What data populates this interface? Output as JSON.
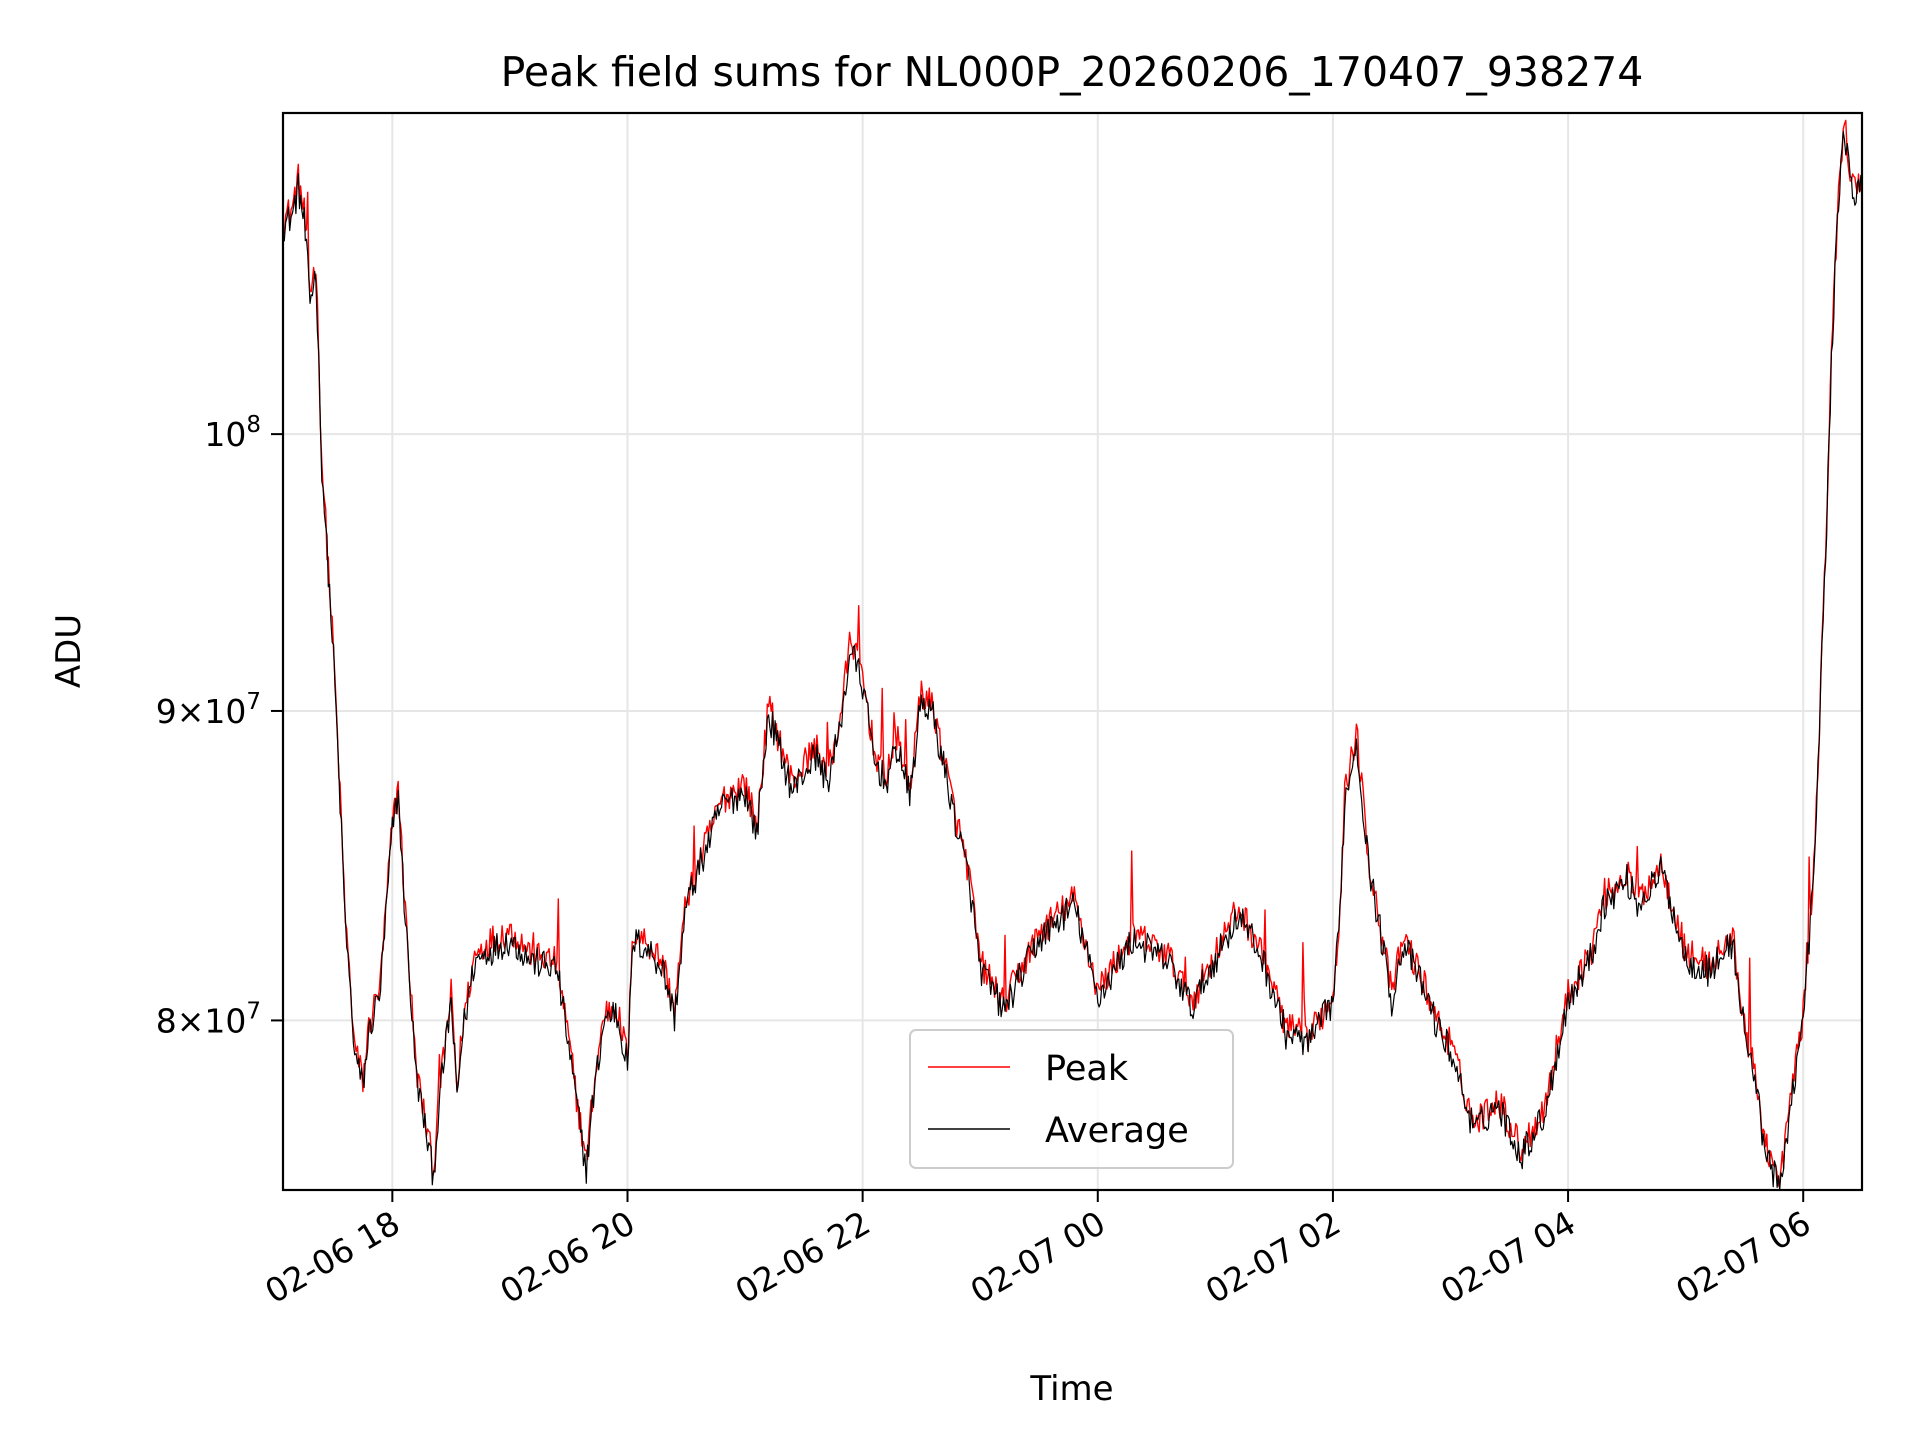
{
  "chart_data": {
    "type": "line",
    "title": "Peak field sums for NL000P_20260206_170407_938274",
    "xlabel": "Time",
    "ylabel": "ADU",
    "x_ticks": [
      "02-06 18",
      "02-06 20",
      "02-06 22",
      "02-07 00",
      "02-07 02",
      "02-07 04",
      "02-07 06"
    ],
    "x_tick_hours": [
      18,
      20,
      22,
      24,
      26,
      28,
      30
    ],
    "xlim_hours": [
      17.07,
      30.5
    ],
    "y_scale": "log",
    "ylim": [
      75000000,
      113000000
    ],
    "y_ticks": [
      {
        "value": 80000000,
        "mantissa": "8",
        "exp": "7"
      },
      {
        "value": 90000000,
        "mantissa": "9",
        "exp": "7"
      },
      {
        "value": 100000000,
        "mantissa": "10",
        "exp": "8"
      }
    ],
    "grid": true,
    "legend": {
      "position": "lower center",
      "entries": [
        "Peak",
        "Average"
      ]
    },
    "series": [
      {
        "name": "Peak",
        "color": "#ff0000",
        "x": [
          17.07,
          17.15,
          17.2,
          17.25,
          17.3,
          17.35,
          17.4,
          17.5,
          17.6,
          17.68,
          17.75,
          17.8,
          17.9,
          18.0,
          18.05,
          18.1,
          18.2,
          18.3,
          18.35,
          18.4,
          18.5,
          18.55,
          18.6,
          18.7,
          18.8,
          19.0,
          19.2,
          19.4,
          19.5,
          19.6,
          19.65,
          19.7,
          19.8,
          19.9,
          20.0,
          20.05,
          20.2,
          20.3,
          20.4,
          20.5,
          20.8,
          21.0,
          21.1,
          21.2,
          21.4,
          21.6,
          21.7,
          21.8,
          21.9,
          22.0,
          22.1,
          22.2,
          22.3,
          22.4,
          22.5,
          22.6,
          22.8,
          22.9,
          23.0,
          23.2,
          23.5,
          23.8,
          24.0,
          24.3,
          24.6,
          24.8,
          25.0,
          25.2,
          25.4,
          25.6,
          25.8,
          26.0,
          26.05,
          26.1,
          26.2,
          26.3,
          26.5,
          26.6,
          26.8,
          26.9,
          27.0,
          27.2,
          27.4,
          27.6,
          27.8,
          28.0,
          28.2,
          28.3,
          28.5,
          28.6,
          28.8,
          29.0,
          29.2,
          29.4,
          29.5,
          29.6,
          29.65,
          29.7,
          29.8,
          29.9,
          30.0,
          30.05,
          30.1,
          30.15,
          30.2,
          30.25,
          30.3,
          30.35,
          30.4,
          30.45,
          30.5
        ],
        "y": [
          108500000,
          109000000,
          110200000,
          108800000,
          105600000,
          106800000,
          99000000,
          92000000,
          83200000,
          79200000,
          78200000,
          79800000,
          81200000,
          86200000,
          87500000,
          84000000,
          78600000,
          76600000,
          75600000,
          77800000,
          80800000,
          77900000,
          79900000,
          82000000,
          82400000,
          82800000,
          82000000,
          81800000,
          79400000,
          76900000,
          75800000,
          77600000,
          80200000,
          80500000,
          78900000,
          82800000,
          82300000,
          81800000,
          80300000,
          83800000,
          87000000,
          87600000,
          86100000,
          90200000,
          87600000,
          88800000,
          87900000,
          89500000,
          92600000,
          91200000,
          88600000,
          87900000,
          89100000,
          87400000,
          90700000,
          90100000,
          86300000,
          84700000,
          81800000,
          80500000,
          82700000,
          83800000,
          80900000,
          82700000,
          82000000,
          80600000,
          82100000,
          83500000,
          82100000,
          79800000,
          79500000,
          80800000,
          82900000,
          87200000,
          89300000,
          85200000,
          80800000,
          82600000,
          80900000,
          79900000,
          79300000,
          76900000,
          77700000,
          76200000,
          77400000,
          80800000,
          82200000,
          83800000,
          84600000,
          83800000,
          84900000,
          82100000,
          81700000,
          82600000,
          79900000,
          78200000,
          76900000,
          76200000,
          75100000,
          77900000,
          80200000,
          82700000,
          85400000,
          91000000,
          97000000,
          104200000,
          109800000,
          112800000,
          110400000,
          109600000,
          110400000
        ]
      },
      {
        "name": "Average",
        "color": "#000000",
        "x": [
          17.07,
          17.15,
          17.2,
          17.25,
          17.3,
          17.35,
          17.4,
          17.5,
          17.6,
          17.68,
          17.75,
          17.8,
          17.9,
          18.0,
          18.05,
          18.1,
          18.2,
          18.3,
          18.35,
          18.4,
          18.5,
          18.55,
          18.6,
          18.7,
          18.8,
          19.0,
          19.2,
          19.4,
          19.5,
          19.6,
          19.65,
          19.7,
          19.8,
          19.9,
          20.0,
          20.05,
          20.2,
          20.3,
          20.4,
          20.5,
          20.8,
          21.0,
          21.1,
          21.2,
          21.4,
          21.6,
          21.7,
          21.8,
          21.9,
          22.0,
          22.1,
          22.2,
          22.3,
          22.4,
          22.5,
          22.6,
          22.8,
          22.9,
          23.0,
          23.2,
          23.5,
          23.8,
          24.0,
          24.3,
          24.6,
          24.8,
          25.0,
          25.2,
          25.4,
          25.6,
          25.8,
          26.0,
          26.05,
          26.1,
          26.2,
          26.3,
          26.5,
          26.6,
          26.8,
          26.9,
          27.0,
          27.2,
          27.4,
          27.6,
          27.8,
          28.0,
          28.2,
          28.3,
          28.5,
          28.6,
          28.8,
          29.0,
          29.2,
          29.4,
          29.5,
          29.6,
          29.65,
          29.7,
          29.8,
          29.9,
          30.0,
          30.05,
          30.1,
          30.15,
          30.2,
          30.25,
          30.3,
          30.35,
          30.4,
          30.45,
          30.5
        ],
        "y": [
          108200000,
          108700000,
          109800000,
          108400000,
          105200000,
          106400000,
          98800000,
          91800000,
          83000000,
          79000000,
          78000000,
          79600000,
          81000000,
          86000000,
          87200000,
          83800000,
          78400000,
          76400000,
          75400000,
          77600000,
          80600000,
          77700000,
          79700000,
          81800000,
          82100000,
          82500000,
          81800000,
          81600000,
          79200000,
          76700000,
          75600000,
          77400000,
          80000000,
          80300000,
          78700000,
          82500000,
          82100000,
          81600000,
          80100000,
          83600000,
          86800000,
          87300000,
          85900000,
          89900000,
          87300000,
          88500000,
          87600000,
          89200000,
          92200000,
          90900000,
          88300000,
          87600000,
          88800000,
          87100000,
          90400000,
          89800000,
          86100000,
          84500000,
          81600000,
          80300000,
          82500000,
          83600000,
          80700000,
          82500000,
          81800000,
          80400000,
          81900000,
          83300000,
          81900000,
          79600000,
          79300000,
          80600000,
          82700000,
          86900000,
          89000000,
          85000000,
          80600000,
          82400000,
          80700000,
          79700000,
          79100000,
          76700000,
          77500000,
          76000000,
          77200000,
          80600000,
          82000000,
          83600000,
          84400000,
          83600000,
          84700000,
          81900000,
          81500000,
          82400000,
          79700000,
          78000000,
          76700000,
          76000000,
          74900000,
          77700000,
          80000000,
          82500000,
          85200000,
          90800000,
          96800000,
          104000000,
          109500000,
          112400000,
          110100000,
          109300000,
          110100000
        ]
      }
    ]
  }
}
